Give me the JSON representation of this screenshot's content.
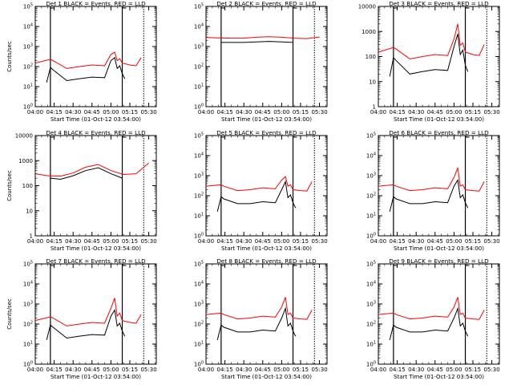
{
  "figure": {
    "background": "#ffffff",
    "event_color": "#000000",
    "lld_color": "#ff0000",
    "xlabel": "Start Time (01-Oct-12 03:54:00)",
    "ylabel": "Counts/sec",
    "xtick_labels": [
      "04:00",
      "04:15",
      "04:30",
      "04:45",
      "05:00",
      "05:15",
      "05:30"
    ]
  },
  "chart_data": [
    {
      "type": "line",
      "detector": 1,
      "title": "Det 1 BLACK = Events, RED = LLD",
      "xlabel": "Start Time (01-Oct-12 03:54:00)",
      "ylabel": "Counts/sec",
      "xlim": [
        "04:00",
        "05:36"
      ],
      "ylog": true,
      "ylim": [
        1,
        100000
      ],
      "ytick_labels": [
        "10^0",
        "10^1",
        "10^2",
        "10^3",
        "10^4",
        "10^5"
      ],
      "vlines": [
        "04:12",
        "05:09",
        "05:26"
      ],
      "series": [
        {
          "name": "Events",
          "color": "#000000",
          "x": [
            "04:09",
            "04:12",
            "04:14",
            "04:25",
            "04:35",
            "04:45",
            "04:55",
            "05:00",
            "05:03",
            "05:05",
            "05:07",
            "05:09",
            "05:11"
          ],
          "y": [
            16,
            90,
            70,
            20,
            25,
            30,
            28,
            200,
            280,
            80,
            110,
            45,
            25
          ]
        },
        {
          "name": "LLD",
          "color": "#ff0000",
          "x": [
            "04:00",
            "04:12",
            "04:14",
            "04:25",
            "04:35",
            "04:45",
            "04:55",
            "05:00",
            "05:03",
            "05:05",
            "05:07",
            "05:09",
            "05:15",
            "05:20",
            "05:24"
          ],
          "y": [
            150,
            230,
            200,
            80,
            100,
            120,
            110,
            400,
            520,
            200,
            250,
            150,
            120,
            110,
            280
          ]
        }
      ]
    },
    {
      "type": "line",
      "detector": 2,
      "title": "Det 2 BLACK = Events, RED = LLD",
      "xlabel": "Start Time (01-Oct-12 03:54:00)",
      "ylabel": "Counts/sec",
      "xlim": [
        "04:00",
        "05:36"
      ],
      "ylog": true,
      "ylim": [
        1,
        100000
      ],
      "ytick_labels": [
        "10^0",
        "10^1",
        "10^2",
        "10^3",
        "10^4",
        "10^5"
      ],
      "vlines": [
        "04:12",
        "05:09",
        "05:26"
      ],
      "series": [
        {
          "name": "Events",
          "color": "#000000",
          "x": [
            "04:12",
            "04:20",
            "04:30",
            "04:40",
            "04:50",
            "05:00",
            "05:09"
          ],
          "y": [
            1600,
            1600,
            1600,
            1700,
            1800,
            1700,
            1600
          ]
        },
        {
          "name": "LLD",
          "color": "#ff0000",
          "x": [
            "04:00",
            "04:10",
            "04:20",
            "04:30",
            "04:40",
            "04:50",
            "05:00",
            "05:10",
            "05:20",
            "05:30"
          ],
          "y": [
            2800,
            2700,
            2600,
            2600,
            2900,
            3100,
            2900,
            2600,
            2500,
            3000
          ]
        }
      ]
    },
    {
      "type": "line",
      "detector": 3,
      "title": "Det 3 BLACK = Events, RED = LLD",
      "xlabel": "Start Time (01-Oct-12 03:54:00)",
      "ylabel": "Counts/sec",
      "xlim": [
        "04:00",
        "05:36"
      ],
      "ylog": true,
      "ylim": [
        1,
        10000
      ],
      "ytick_labels": [
        "1",
        "10",
        "100",
        "1000",
        "10000"
      ],
      "vlines": [
        "04:12",
        "05:09",
        "05:26"
      ],
      "series": [
        {
          "name": "Events",
          "color": "#000000",
          "x": [
            "04:09",
            "04:12",
            "04:14",
            "04:25",
            "04:35",
            "04:45",
            "04:55",
            "05:00",
            "05:03",
            "05:05",
            "05:07",
            "05:09",
            "05:11"
          ],
          "y": [
            16,
            90,
            70,
            20,
            25,
            30,
            28,
            250,
            800,
            120,
            180,
            45,
            25
          ]
        },
        {
          "name": "LLD",
          "color": "#ff0000",
          "x": [
            "04:00",
            "04:12",
            "04:14",
            "04:25",
            "04:35",
            "04:45",
            "04:55",
            "05:00",
            "05:03",
            "05:05",
            "05:07",
            "05:09",
            "05:15",
            "05:20",
            "05:24"
          ],
          "y": [
            150,
            230,
            200,
            80,
            100,
            120,
            110,
            500,
            2000,
            280,
            350,
            150,
            120,
            110,
            300
          ]
        }
      ]
    },
    {
      "type": "line",
      "detector": 4,
      "title": "Det 4 BLACK = Events, RED = LLD",
      "xlabel": "Start Time (01-Oct-12 03:54:00)",
      "ylabel": "Counts/sec",
      "xlim": [
        "04:00",
        "05:36"
      ],
      "ylog": true,
      "ylim": [
        1,
        10000
      ],
      "ytick_labels": [
        "1",
        "10",
        "100",
        "1000",
        "10000"
      ],
      "vlines": [
        "04:12",
        "05:09",
        "05:26"
      ],
      "series": [
        {
          "name": "Events",
          "color": "#000000",
          "x": [
            "04:12",
            "04:20",
            "04:30",
            "04:40",
            "04:50",
            "05:00",
            "05:09"
          ],
          "y": [
            200,
            180,
            250,
            400,
            520,
            300,
            200
          ]
        },
        {
          "name": "LLD",
          "color": "#ff0000",
          "x": [
            "04:00",
            "04:10",
            "04:20",
            "04:30",
            "04:40",
            "04:50",
            "05:00",
            "05:10",
            "05:20",
            "05:30"
          ],
          "y": [
            300,
            250,
            240,
            320,
            550,
            700,
            400,
            280,
            300,
            800
          ]
        }
      ]
    },
    {
      "type": "line",
      "detector": 5,
      "title": "Det 5 BLACK = Events, RED = LLD",
      "xlabel": "Start Time (01-Oct-12 03:54:00)",
      "ylabel": "Counts/sec",
      "xlim": [
        "04:00",
        "05:36"
      ],
      "ylog": true,
      "ylim": [
        1,
        100000
      ],
      "ytick_labels": [
        "10^0",
        "10^1",
        "10^2",
        "10^3",
        "10^4",
        "10^5"
      ],
      "vlines": [
        "04:12",
        "05:09",
        "05:26"
      ],
      "series": [
        {
          "name": "Events",
          "color": "#000000",
          "x": [
            "04:09",
            "04:12",
            "04:14",
            "04:25",
            "04:35",
            "04:45",
            "04:55",
            "05:00",
            "05:03",
            "05:05",
            "05:07",
            "05:09",
            "05:11"
          ],
          "y": [
            16,
            90,
            70,
            40,
            40,
            50,
            45,
            200,
            500,
            80,
            110,
            45,
            25
          ]
        },
        {
          "name": "LLD",
          "color": "#ff0000",
          "x": [
            "04:00",
            "04:12",
            "04:14",
            "04:25",
            "04:35",
            "04:45",
            "04:55",
            "05:00",
            "05:03",
            "05:05",
            "05:07",
            "05:09",
            "05:15",
            "05:20",
            "05:24"
          ],
          "y": [
            300,
            350,
            300,
            180,
            200,
            250,
            220,
            600,
            900,
            300,
            350,
            200,
            180,
            170,
            500
          ]
        }
      ]
    },
    {
      "type": "line",
      "detector": 6,
      "title": "Det 6 BLACK = Events, RED = LLD",
      "xlabel": "Start Time (01-Oct-12 03:54:00)",
      "ylabel": "Counts/sec",
      "xlim": [
        "04:00",
        "05:36"
      ],
      "ylog": true,
      "ylim": [
        1,
        100000
      ],
      "ytick_labels": [
        "10^0",
        "10^1",
        "10^2",
        "10^3",
        "10^4",
        "10^5"
      ],
      "vlines": [
        "04:12",
        "05:09",
        "05:26"
      ],
      "series": [
        {
          "name": "Events",
          "color": "#000000",
          "x": [
            "04:09",
            "04:12",
            "04:14",
            "04:25",
            "04:35",
            "04:45",
            "04:55",
            "05:00",
            "05:03",
            "05:05",
            "05:07",
            "05:09",
            "05:11"
          ],
          "y": [
            16,
            90,
            70,
            40,
            40,
            50,
            45,
            300,
            600,
            80,
            110,
            45,
            25
          ]
        },
        {
          "name": "LLD",
          "color": "#ff0000",
          "x": [
            "04:00",
            "04:12",
            "04:14",
            "04:25",
            "04:35",
            "04:45",
            "04:55",
            "05:00",
            "05:03",
            "05:05",
            "05:07",
            "05:09",
            "05:15",
            "05:20",
            "05:24"
          ],
          "y": [
            300,
            350,
            300,
            180,
            200,
            250,
            220,
            800,
            2500,
            300,
            350,
            200,
            180,
            170,
            500
          ]
        }
      ]
    },
    {
      "type": "line",
      "detector": 7,
      "title": "Det 7 BLACK = Events, RED = LLD",
      "xlabel": "Start Time (01-Oct-12 03:54:00)",
      "ylabel": "Counts/sec",
      "xlim": [
        "04:00",
        "05:36"
      ],
      "ylog": true,
      "ylim": [
        1,
        100000
      ],
      "ytick_labels": [
        "10^0",
        "10^1",
        "10^2",
        "10^3",
        "10^4",
        "10^5"
      ],
      "vlines": [
        "04:12",
        "05:09",
        "05:26"
      ],
      "series": [
        {
          "name": "Events",
          "color": "#000000",
          "x": [
            "04:09",
            "04:12",
            "04:14",
            "04:25",
            "04:35",
            "04:45",
            "04:55",
            "05:00",
            "05:03",
            "05:05",
            "05:07",
            "05:09",
            "05:11"
          ],
          "y": [
            16,
            90,
            70,
            20,
            25,
            30,
            28,
            250,
            500,
            80,
            110,
            45,
            25
          ]
        },
        {
          "name": "LLD",
          "color": "#ff0000",
          "x": [
            "04:00",
            "04:12",
            "04:14",
            "04:25",
            "04:35",
            "04:45",
            "04:55",
            "05:00",
            "05:03",
            "05:05",
            "05:07",
            "05:09",
            "05:15",
            "05:20",
            "05:24"
          ],
          "y": [
            150,
            230,
            200,
            80,
            100,
            120,
            110,
            600,
            2000,
            250,
            350,
            150,
            120,
            110,
            300
          ]
        }
      ]
    },
    {
      "type": "line",
      "detector": 8,
      "title": "Det 8 BLACK = Events, RED = LLD",
      "xlabel": "Start Time (01-Oct-12 03:54:00)",
      "ylabel": "Counts/sec",
      "xlim": [
        "04:00",
        "05:36"
      ],
      "ylog": true,
      "ylim": [
        1,
        100000
      ],
      "ytick_labels": [
        "10^0",
        "10^1",
        "10^2",
        "10^3",
        "10^4",
        "10^5"
      ],
      "vlines": [
        "04:12",
        "05:09",
        "05:26"
      ],
      "series": [
        {
          "name": "Events",
          "color": "#000000",
          "x": [
            "04:09",
            "04:12",
            "04:14",
            "04:25",
            "04:35",
            "04:45",
            "04:55",
            "05:00",
            "05:03",
            "05:05",
            "05:07",
            "05:09",
            "05:11"
          ],
          "y": [
            16,
            90,
            70,
            40,
            40,
            50,
            45,
            200,
            600,
            80,
            110,
            45,
            25
          ]
        },
        {
          "name": "LLD",
          "color": "#ff0000",
          "x": [
            "04:00",
            "04:12",
            "04:14",
            "04:25",
            "04:35",
            "04:45",
            "04:55",
            "05:00",
            "05:03",
            "05:05",
            "05:07",
            "05:09",
            "05:15",
            "05:20",
            "05:24"
          ],
          "y": [
            300,
            350,
            300,
            180,
            200,
            250,
            220,
            700,
            2200,
            300,
            350,
            200,
            180,
            170,
            500
          ]
        }
      ]
    },
    {
      "type": "line",
      "detector": 9,
      "title": "Det 9 BLACK = Events, RED = LLD",
      "xlabel": "Start Time (01-Oct-12 03:54:00)",
      "ylabel": "Counts/sec",
      "xlim": [
        "04:00",
        "05:36"
      ],
      "ylog": true,
      "ylim": [
        1,
        100000
      ],
      "ytick_labels": [
        "10^0",
        "10^1",
        "10^2",
        "10^3",
        "10^4",
        "10^5"
      ],
      "vlines": [
        "04:12",
        "05:09",
        "05:26"
      ],
      "series": [
        {
          "name": "Events",
          "color": "#000000",
          "x": [
            "04:09",
            "04:12",
            "04:14",
            "04:25",
            "04:35",
            "04:45",
            "04:55",
            "05:00",
            "05:03",
            "05:05",
            "05:07",
            "05:09",
            "05:11"
          ],
          "y": [
            16,
            90,
            70,
            40,
            40,
            50,
            45,
            200,
            600,
            80,
            110,
            45,
            25
          ]
        },
        {
          "name": "LLD",
          "color": "#ff0000",
          "x": [
            "04:00",
            "04:12",
            "04:14",
            "04:25",
            "04:35",
            "04:45",
            "04:55",
            "05:00",
            "05:03",
            "05:05",
            "05:07",
            "05:09",
            "05:15",
            "05:20",
            "05:24"
          ],
          "y": [
            300,
            350,
            300,
            180,
            200,
            250,
            220,
            700,
            2200,
            300,
            350,
            200,
            180,
            170,
            500
          ]
        }
      ]
    }
  ]
}
